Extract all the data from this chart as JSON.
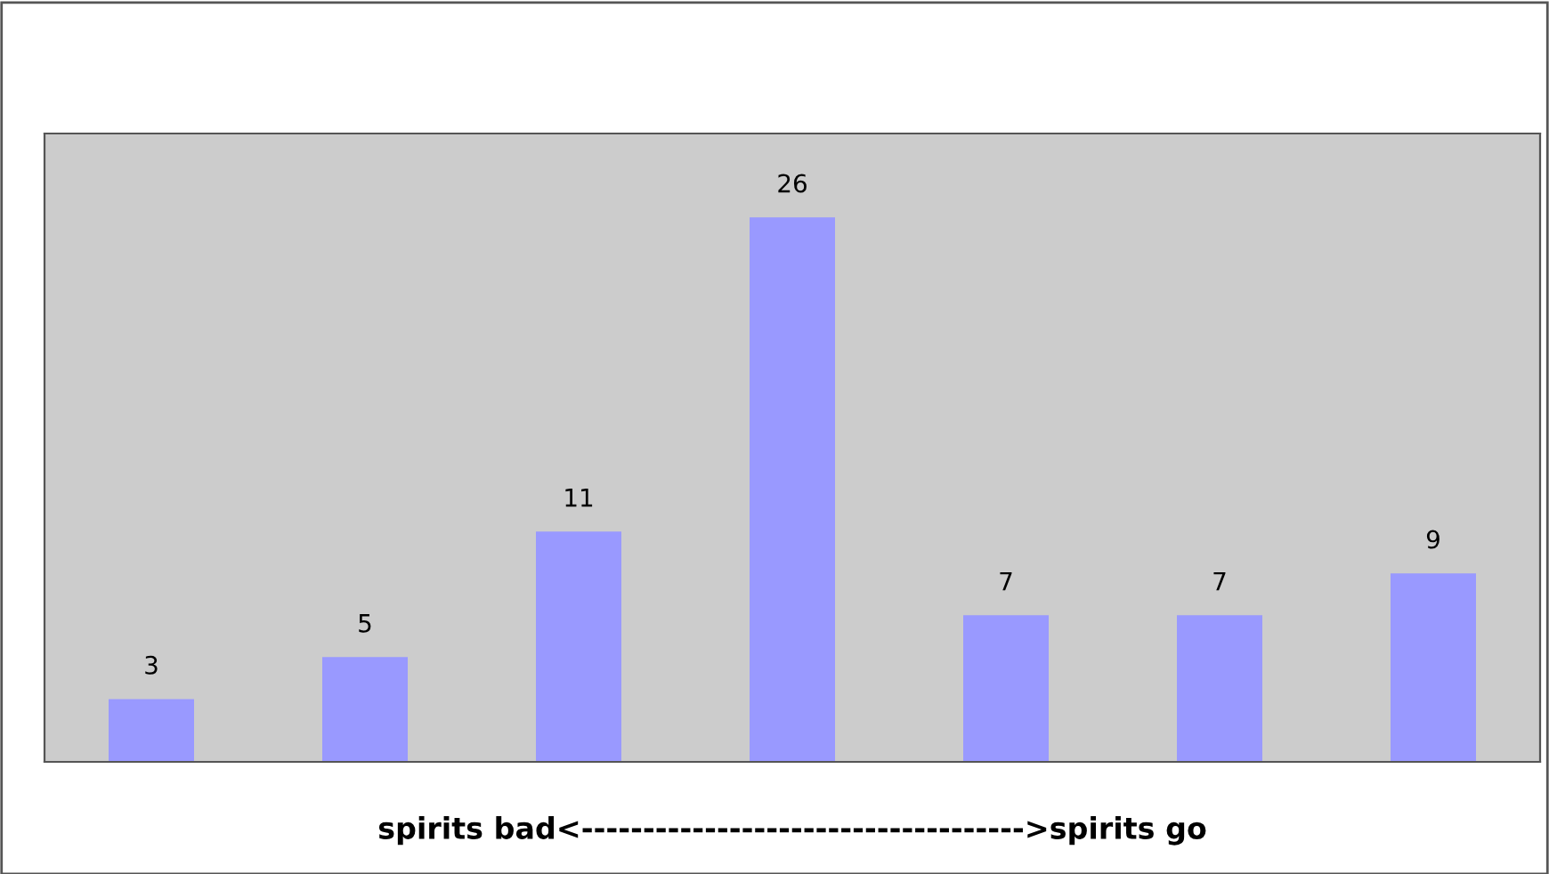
{
  "chart_data": {
    "type": "bar",
    "categories": [
      null,
      null,
      null,
      null,
      null,
      null,
      null
    ],
    "values": [
      3,
      5,
      11,
      26,
      7,
      7,
      9
    ],
    "color": "#9999ff",
    "data_labels": true,
    "ylim": [
      0,
      30
    ],
    "grid": false,
    "legend": false,
    "xlabel": "spirits bad<------------------------------------>spirits go",
    "tick_labels": false
  }
}
